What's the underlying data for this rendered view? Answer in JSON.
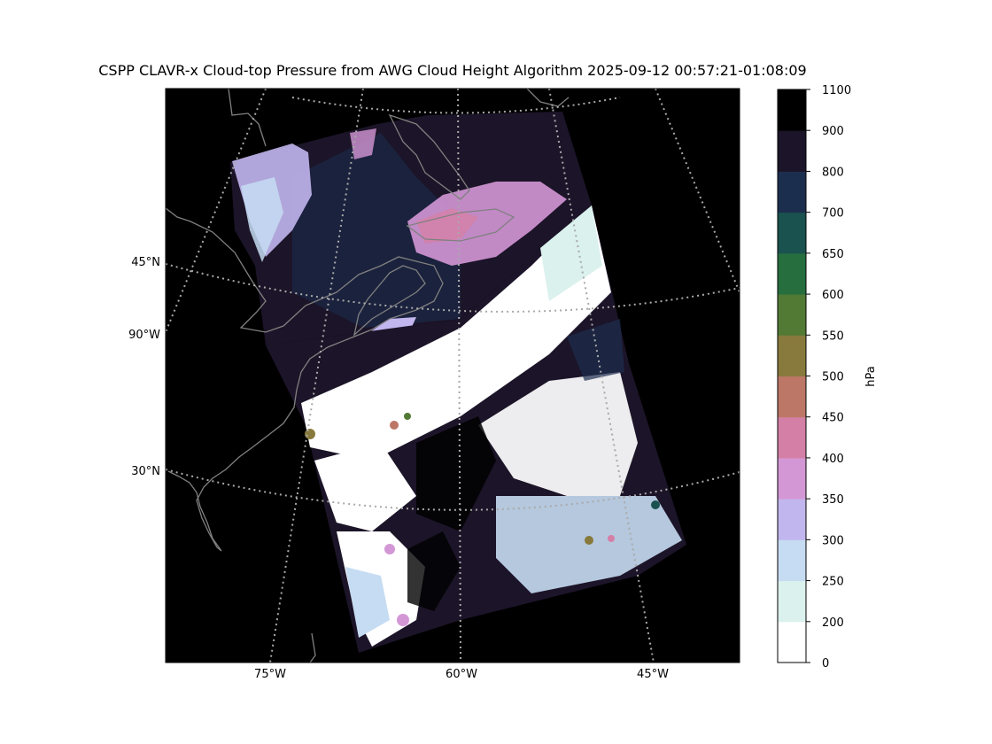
{
  "title": "CSPP CLAVR-x Cloud-top Pressure from AWG Cloud Height Algorithm 2025-09-12 00:57:21-01:08:09",
  "map": {
    "lat_labels": [
      {
        "text": "45°N",
        "lat": 45
      },
      {
        "text": "90°W",
        "lon": -90
      },
      {
        "text": "30°N",
        "lat": 30
      }
    ],
    "lon_labels": [
      {
        "text": "75°W",
        "lon": -75
      },
      {
        "text": "60°W",
        "lon": -60
      },
      {
        "text": "45°W",
        "lon": -45
      }
    ],
    "background_color": "#000000",
    "coastline_color": "#808080",
    "gridline_color": "#a9a9a9"
  },
  "colorbar": {
    "label": "hPa",
    "ticks": [
      "0",
      "200",
      "250",
      "300",
      "350",
      "400",
      "450",
      "500",
      "550",
      "600",
      "650",
      "700",
      "800",
      "900",
      "1100"
    ],
    "bins": [
      {
        "range": [
          0,
          200
        ],
        "color": "#ffffff"
      },
      {
        "range": [
          200,
          250
        ],
        "color": "#dbf1ee"
      },
      {
        "range": [
          250,
          300
        ],
        "color": "#c6dcf2"
      },
      {
        "range": [
          300,
          350
        ],
        "color": "#c2b6ee"
      },
      {
        "range": [
          350,
          400
        ],
        "color": "#d497d6"
      },
      {
        "range": [
          400,
          450
        ],
        "color": "#d480a6"
      },
      {
        "range": [
          450,
          500
        ],
        "color": "#bc7766"
      },
      {
        "range": [
          500,
          550
        ],
        "color": "#887a3c"
      },
      {
        "range": [
          550,
          600
        ],
        "color": "#527a34"
      },
      {
        "range": [
          600,
          650
        ],
        "color": "#266e3e"
      },
      {
        "range": [
          650,
          700
        ],
        "color": "#1a524f"
      },
      {
        "range": [
          700,
          800
        ],
        "color": "#1c2e4e"
      },
      {
        "range": [
          800,
          900
        ],
        "color": "#1c1428"
      },
      {
        "range": [
          900,
          1100
        ],
        "color": "#000000"
      }
    ]
  }
}
